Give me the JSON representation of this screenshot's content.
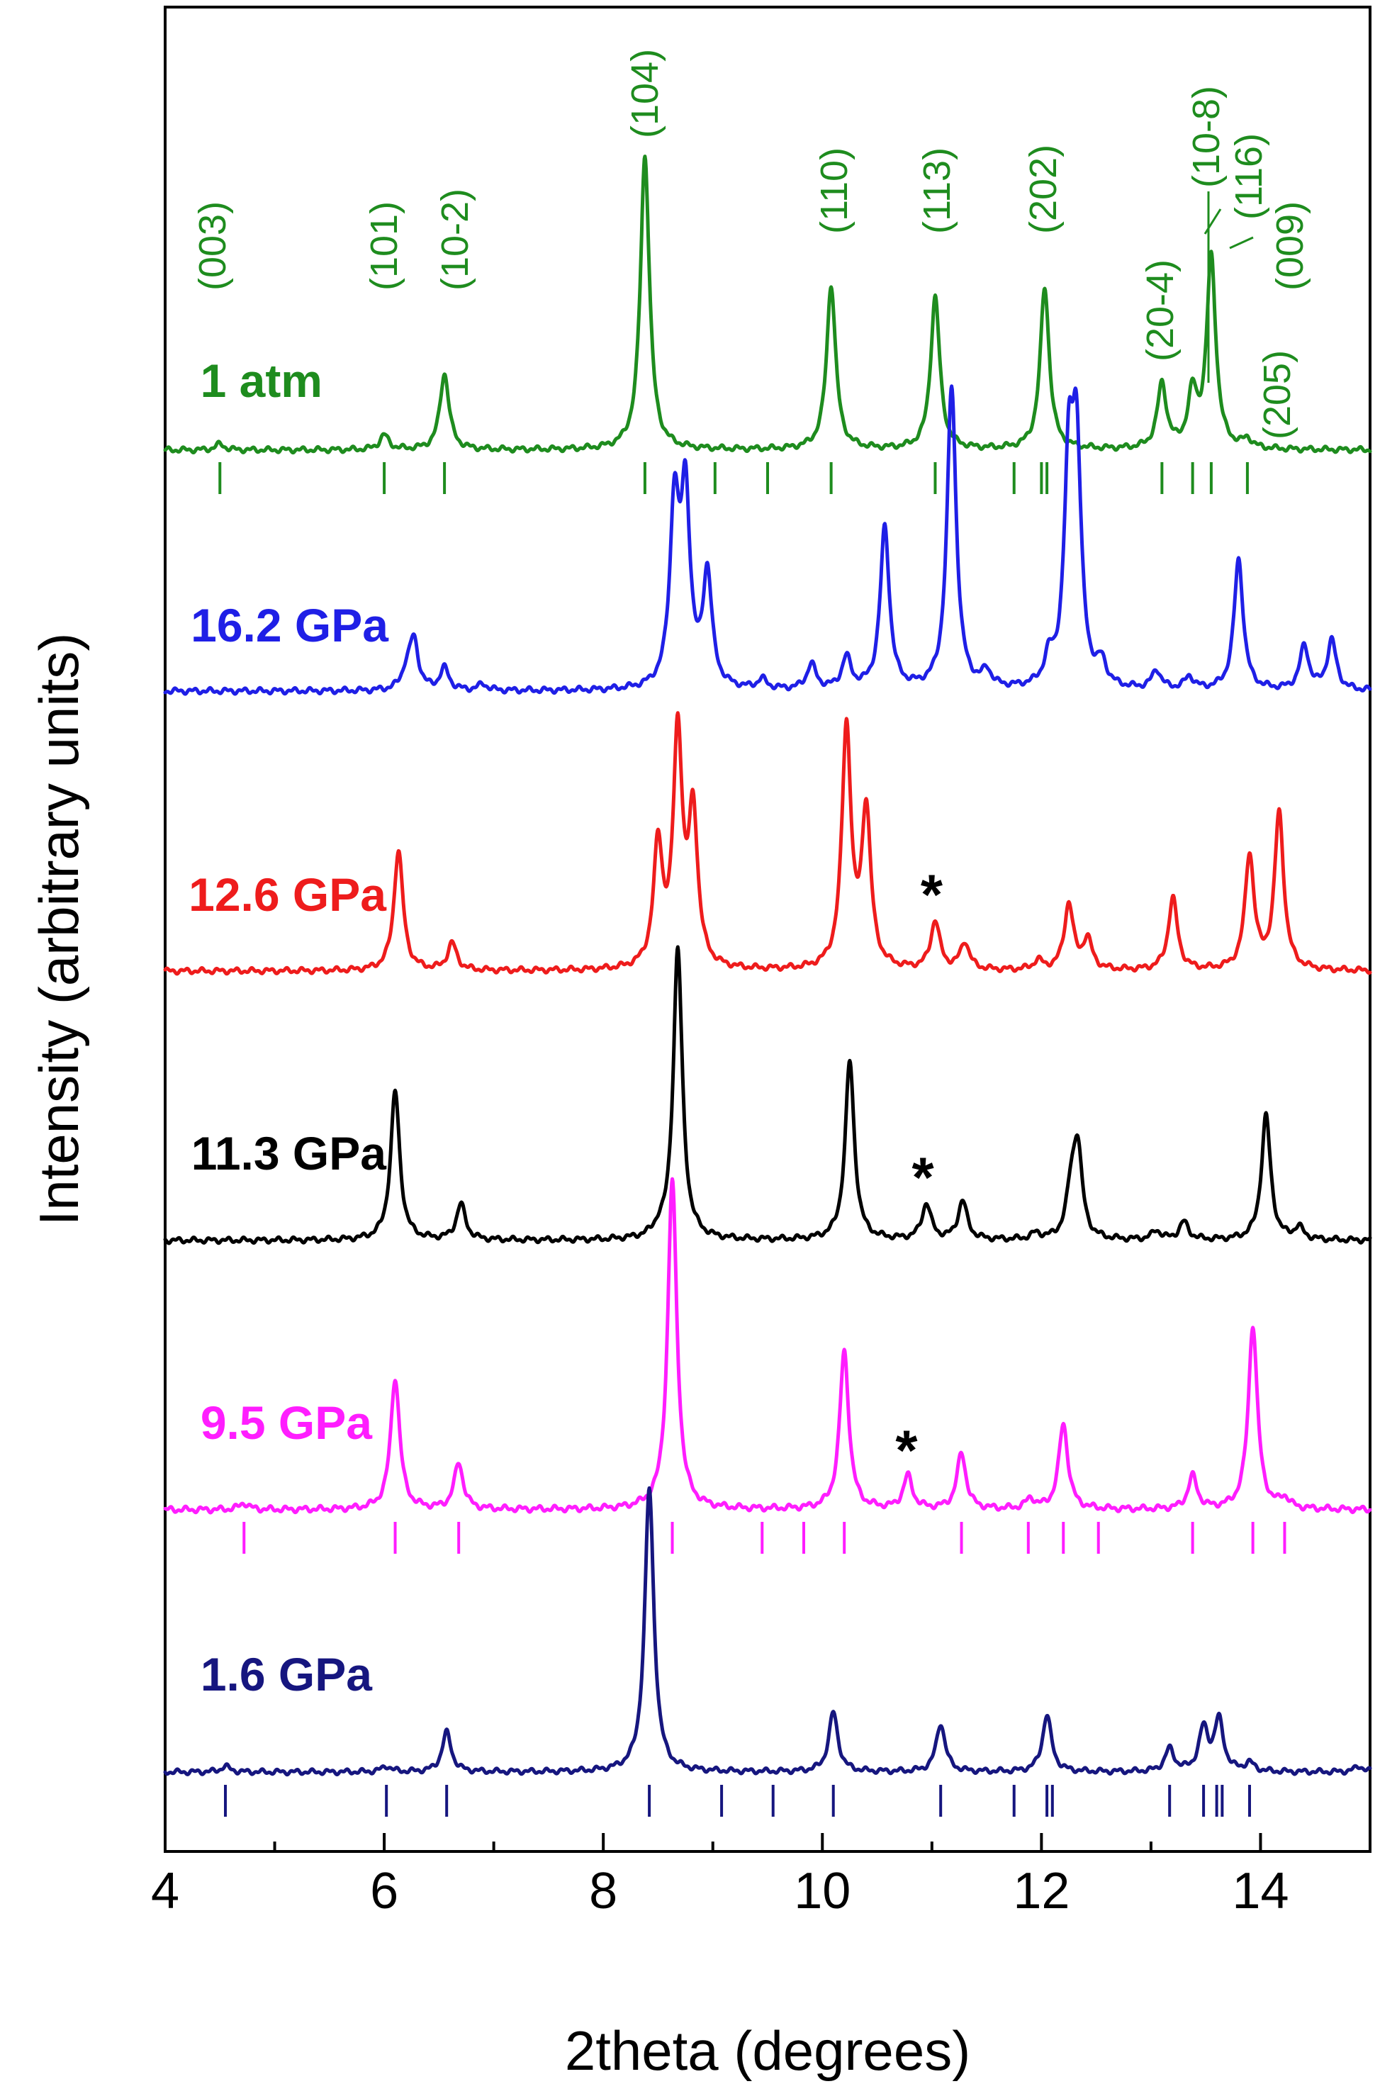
{
  "chart_data": {
    "type": "line",
    "xlabel": "2theta (degrees)",
    "ylabel": "Intensity (arbitrary units)",
    "xlim": [
      4,
      15
    ],
    "xticks": [
      4,
      6,
      8,
      10,
      12,
      14
    ],
    "tick_labels": [
      "4",
      "6",
      "8",
      "10",
      "12",
      "14"
    ],
    "series": [
      {
        "name": "1 atm",
        "color": "#1e8c1e",
        "peaks": [
          [
            4.5,
            0.02
          ],
          [
            6.0,
            0.05
          ],
          [
            6.55,
            0.26
          ],
          [
            8.38,
            1.0
          ],
          [
            10.08,
            0.56
          ],
          [
            11.03,
            0.52
          ],
          [
            12.03,
            0.55
          ],
          [
            13.1,
            0.22
          ],
          [
            13.38,
            0.18
          ],
          [
            13.55,
            0.65
          ],
          [
            13.88,
            0.03
          ]
        ],
        "reflections": [
          4.5,
          6.0,
          6.55,
          8.38,
          9.02,
          9.5,
          10.08,
          11.03,
          11.75,
          12.0,
          12.05,
          13.1,
          13.38,
          13.55,
          13.88
        ]
      },
      {
        "name": "16.2 GPa",
        "color": "#1f1fe6",
        "peaks": [
          [
            6.2,
            0.05
          ],
          [
            6.27,
            0.16
          ],
          [
            6.55,
            0.07
          ],
          [
            6.9,
            0.02
          ],
          [
            8.65,
            0.57
          ],
          [
            8.75,
            0.6
          ],
          [
            8.95,
            0.36
          ],
          [
            9.45,
            0.03
          ],
          [
            9.9,
            0.08
          ],
          [
            10.22,
            0.1
          ],
          [
            10.57,
            0.52
          ],
          [
            11.18,
            0.97
          ],
          [
            11.5,
            0.05
          ],
          [
            12.07,
            0.08
          ],
          [
            12.25,
            0.66
          ],
          [
            12.32,
            0.72
          ],
          [
            12.55,
            0.07
          ],
          [
            13.05,
            0.06
          ],
          [
            13.35,
            0.04
          ],
          [
            13.8,
            0.42
          ],
          [
            14.4,
            0.14
          ],
          [
            14.65,
            0.16
          ]
        ]
      },
      {
        "name": "12.6 GPa",
        "color": "#ee1c1c",
        "peaks": [
          [
            6.13,
            0.4
          ],
          [
            6.62,
            0.09
          ],
          [
            8.5,
            0.4
          ],
          [
            8.68,
            0.77
          ],
          [
            8.82,
            0.5
          ],
          [
            10.22,
            0.8
          ],
          [
            10.4,
            0.52
          ],
          [
            11.03,
            0.16
          ],
          [
            11.3,
            0.09
          ],
          [
            11.97,
            0.03
          ],
          [
            12.25,
            0.22
          ],
          [
            12.42,
            0.1
          ],
          [
            13.2,
            0.24
          ],
          [
            13.9,
            0.38
          ],
          [
            14.17,
            0.52
          ]
        ],
        "star": 11.03
      },
      {
        "name": "11.3 GPa",
        "color": "#000000",
        "peaks": [
          [
            6.1,
            0.5
          ],
          [
            6.7,
            0.12
          ],
          [
            8.5,
            0.02
          ],
          [
            8.68,
            0.98
          ],
          [
            10.25,
            0.6
          ],
          [
            10.95,
            0.12
          ],
          [
            11.28,
            0.13
          ],
          [
            11.95,
            0.02
          ],
          [
            12.27,
            0.14
          ],
          [
            12.33,
            0.3
          ],
          [
            13.05,
            0.03
          ],
          [
            13.3,
            0.06
          ],
          [
            14.05,
            0.42
          ],
          [
            14.35,
            0.04
          ]
        ],
        "star": 10.95
      },
      {
        "name": "9.5 GPa",
        "color": "#ff1dff",
        "peaks": [
          [
            4.72,
            0.02
          ],
          [
            6.1,
            0.4
          ],
          [
            6.68,
            0.14
          ],
          [
            8.63,
            1.0
          ],
          [
            10.2,
            0.48
          ],
          [
            10.78,
            0.1
          ],
          [
            11.27,
            0.17
          ],
          [
            11.9,
            0.03
          ],
          [
            12.2,
            0.26
          ],
          [
            13.38,
            0.1
          ],
          [
            13.93,
            0.56
          ],
          [
            14.22,
            0.03
          ]
        ],
        "star": 10.8,
        "reflections": [
          4.72,
          6.1,
          6.68,
          8.63,
          9.45,
          9.83,
          10.2,
          11.27,
          11.88,
          12.2,
          12.52,
          13.38,
          13.93,
          14.22
        ]
      },
      {
        "name": "1.6 GPa",
        "color": "#16167f",
        "peaks": [
          [
            4.55,
            0.02
          ],
          [
            6.02,
            0.02
          ],
          [
            6.57,
            0.14
          ],
          [
            8.42,
            1.0
          ],
          [
            10.1,
            0.21
          ],
          [
            11.08,
            0.17
          ],
          [
            12.05,
            0.2
          ],
          [
            13.17,
            0.08
          ],
          [
            13.48,
            0.15
          ],
          [
            13.62,
            0.18
          ],
          [
            13.9,
            0.03
          ],
          [
            14.9,
            0.02
          ]
        ],
        "reflections": [
          4.55,
          6.02,
          6.57,
          8.42,
          9.08,
          9.55,
          10.1,
          11.08,
          11.75,
          12.05,
          12.1,
          13.17,
          13.48,
          13.6,
          13.65,
          13.9
        ]
      }
    ],
    "hkl_labels": [
      {
        "text": "(003)",
        "x": 4.5
      },
      {
        "text": "(101)",
        "x": 6.0
      },
      {
        "text": "(10-2)",
        "x": 6.55
      },
      {
        "text": "(104)",
        "x": 8.38
      },
      {
        "text": "(110)",
        "x": 10.08
      },
      {
        "text": "(113)",
        "x": 11.03
      },
      {
        "text": "(202)",
        "x": 12.03
      },
      {
        "text": "(20-4)",
        "x": 13.1
      },
      {
        "text": "(10-8)",
        "x": 13.38
      },
      {
        "text": "(116)",
        "x": 13.55
      },
      {
        "text": "(009)",
        "x": 13.88
      },
      {
        "text": "(205)",
        "x": 13.88
      }
    ],
    "star_symbol": "*"
  }
}
